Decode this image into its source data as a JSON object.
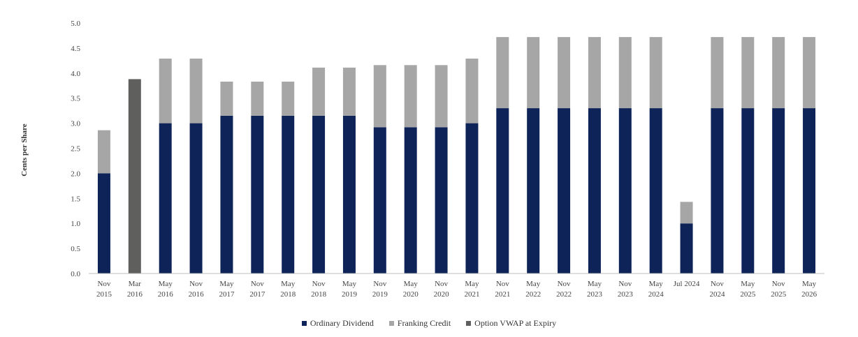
{
  "chart_data": {
    "type": "bar",
    "stacked": true,
    "ylabel": "Cents per Share",
    "ylim": [
      0,
      5
    ],
    "yticks": [
      "0.0",
      "0.5",
      "1.0",
      "1.5",
      "2.0",
      "2.5",
      "3.0",
      "3.5",
      "4.0",
      "4.5",
      "5.0"
    ],
    "categories": [
      [
        "Nov",
        "2015"
      ],
      [
        "Mar",
        "2016"
      ],
      [
        "May",
        "2016"
      ],
      [
        "Nov",
        "2016"
      ],
      [
        "May",
        "2017"
      ],
      [
        "Nov",
        "2017"
      ],
      [
        "May",
        "2018"
      ],
      [
        "Nov",
        "2018"
      ],
      [
        "May",
        "2019"
      ],
      [
        "Nov",
        "2019"
      ],
      [
        "May",
        "2020"
      ],
      [
        "Nov",
        "2020"
      ],
      [
        "May",
        "2021"
      ],
      [
        "Nov",
        "2021"
      ],
      [
        "May",
        "2022"
      ],
      [
        "Nov",
        "2022"
      ],
      [
        "May",
        "2023"
      ],
      [
        "Nov",
        "2023"
      ],
      [
        "May",
        "2024"
      ],
      [
        "Jul 2024"
      ],
      [
        "Nov",
        "2024"
      ],
      [
        "May",
        "2025"
      ],
      [
        "Nov",
        "2025"
      ],
      [
        "May",
        "2026"
      ]
    ],
    "series": [
      {
        "name": "Ordinary Dividend",
        "color": "#0e2458",
        "values": [
          2.0,
          0,
          3.0,
          3.0,
          3.15,
          3.15,
          3.15,
          3.15,
          3.15,
          2.92,
          2.92,
          2.92,
          3.0,
          3.3,
          3.3,
          3.3,
          3.3,
          3.3,
          3.3,
          1.0,
          3.3,
          3.3,
          3.3,
          3.3
        ]
      },
      {
        "name": "Franking Credit",
        "color": "#a6a6a6",
        "values": [
          0.86,
          0,
          1.29,
          1.29,
          0.68,
          0.68,
          0.68,
          0.96,
          0.96,
          1.24,
          1.24,
          1.24,
          1.29,
          1.42,
          1.42,
          1.42,
          1.42,
          1.42,
          1.42,
          0.43,
          1.42,
          1.42,
          1.42,
          1.42
        ]
      },
      {
        "name": "Option VWAP at Expiry",
        "color": "#5f5f5d",
        "values": [
          0,
          3.88,
          0,
          0,
          0,
          0,
          0,
          0,
          0,
          0,
          0,
          0,
          0,
          0,
          0,
          0,
          0,
          0,
          0,
          0,
          0,
          0,
          0,
          0
        ]
      }
    ],
    "grid": false,
    "legend_position": "bottom-center"
  }
}
